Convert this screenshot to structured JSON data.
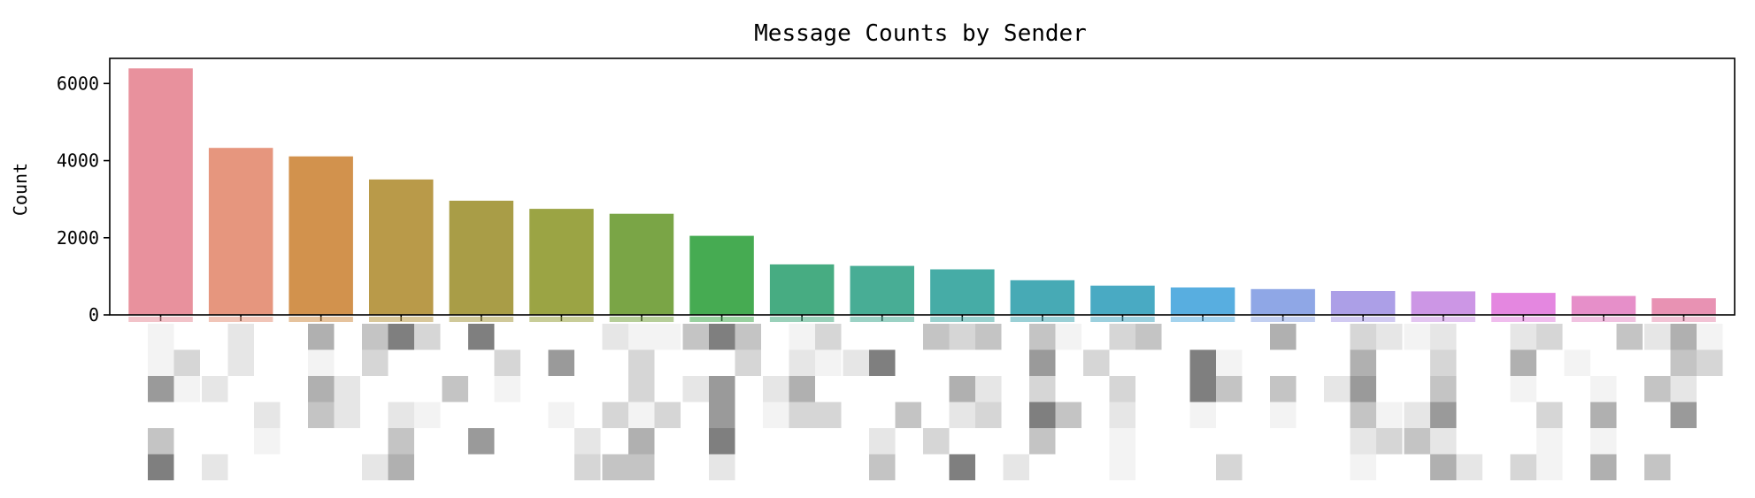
{
  "chart_data": {
    "type": "bar",
    "title": "Message Counts by Sender",
    "xlabel": "",
    "ylabel": "Count",
    "ylim": [
      0,
      6650
    ],
    "yticks": [
      0,
      2000,
      4000,
      6000
    ],
    "grid": false,
    "legend": "none",
    "categories_obscured": true,
    "values": [
      6390,
      4330,
      4110,
      3510,
      2960,
      2750,
      2620,
      2050,
      1310,
      1270,
      1180,
      900,
      760,
      710,
      670,
      620,
      610,
      570,
      490,
      430
    ],
    "colors": [
      "#e8919d",
      "#e6967e",
      "#d2924d",
      "#b99a49",
      "#a99d47",
      "#9ba444",
      "#7aa546",
      "#46ab52",
      "#47ac82",
      "#48ad95",
      "#46aca6",
      "#47aab5",
      "#49aac3",
      "#58aee0",
      "#8fa7e6",
      "#ac9fe7",
      "#cc96e5",
      "#e487e0",
      "#e68fc9",
      "#e892b3"
    ]
  }
}
